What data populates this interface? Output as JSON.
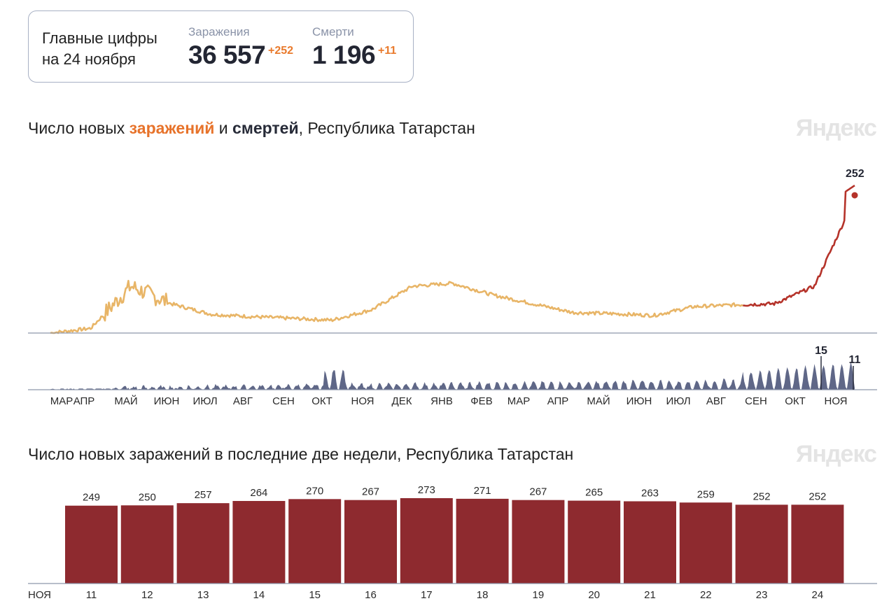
{
  "summary": {
    "title_line1": "Главные цифры",
    "title_line2": "на 24 ноября",
    "infections_label": "Заражения",
    "infections_total": "36 557",
    "infections_delta": "+252",
    "deaths_label": "Смерти",
    "deaths_total": "1 196",
    "deaths_delta": "+11"
  },
  "brand": "Яндекс",
  "chart1": {
    "title_part1": "Число новых ",
    "title_part2": "заражений",
    "title_part3": " и ",
    "title_part4": "смертей",
    "title_part5": ", Республика Татарстан"
  },
  "chart2": {
    "title": "Число новых заражений в последние две недели, Республика Татарстан"
  },
  "colors": {
    "infections_line": "#e8b567",
    "infections_recent": "#b5332a",
    "deaths_area": "#5f6787",
    "bar_fill": "#8e2a2f",
    "weekend_label": "#e3502b",
    "axis_line": "#8d96aa"
  },
  "chart_data": [
    {
      "type": "line",
      "title": "Число новых заражений и смертей, Республика Татарстан",
      "x_labels": [
        "МАР",
        "АПР",
        "МАЙ",
        "ИЮН",
        "ИЮЛ",
        "АВГ",
        "СЕН",
        "ОКТ",
        "НОЯ",
        "ДЕК",
        "ЯНВ",
        "ФЕВ",
        "МАР",
        "АПР",
        "МАЙ",
        "ИЮН",
        "ИЮЛ",
        "АВГ",
        "СЕН",
        "ОКТ",
        "НОЯ"
      ],
      "series": [
        {
          "name": "заражений",
          "type": "line",
          "ylim": [
            0,
            270
          ],
          "monthly_approx": [
            0,
            8,
            80,
            50,
            32,
            28,
            25,
            22,
            40,
            80,
            85,
            65,
            50,
            35,
            33,
            30,
            45,
            48,
            50,
            80,
            230
          ],
          "last_value": 252
        },
        {
          "name": "смертей",
          "type": "area",
          "ylim": [
            0,
            18
          ],
          "peak_label": 15,
          "last_value": 11
        }
      ]
    },
    {
      "type": "bar",
      "title": "Число новых заражений в последние две недели, Республика Татарстан",
      "month_label": "НОЯ",
      "categories": [
        "11",
        "12",
        "13",
        "14",
        "15",
        "16",
        "17",
        "18",
        "19",
        "20",
        "21",
        "22",
        "23",
        "24"
      ],
      "values": [
        249,
        250,
        257,
        264,
        270,
        267,
        273,
        271,
        267,
        265,
        263,
        259,
        252,
        252
      ],
      "weekend": [
        false,
        false,
        true,
        true,
        false,
        false,
        false,
        false,
        false,
        true,
        true,
        false,
        false,
        false
      ],
      "ylim": [
        0,
        273
      ]
    }
  ]
}
